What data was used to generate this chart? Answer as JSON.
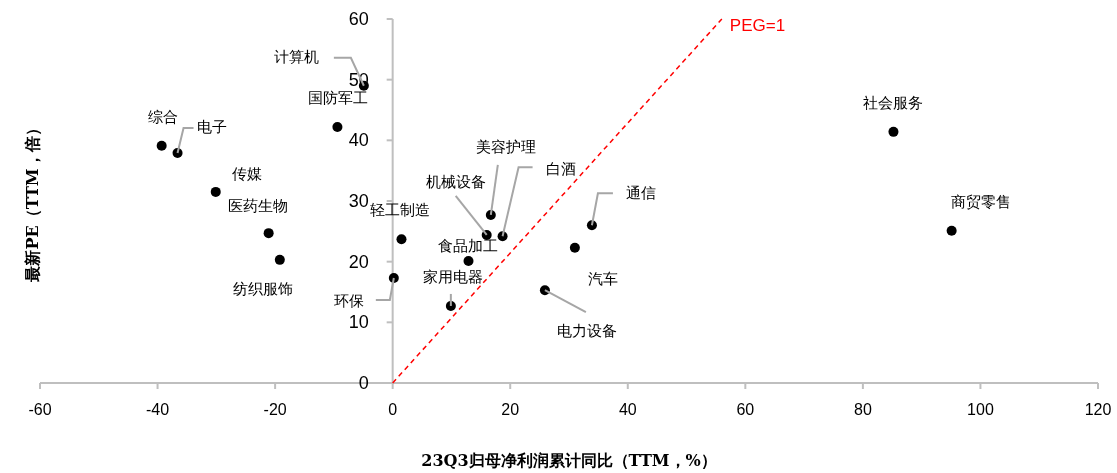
{
  "chart_data": {
    "type": "scatter",
    "xlabel": "23Q3归母净利润累计同比（TTM，%）",
    "ylabel": "最新PE（TTM，倍）",
    "xlim": [
      -60,
      120
    ],
    "xticks": [
      -60,
      -40,
      -20,
      0,
      20,
      40,
      60,
      80,
      100,
      120
    ],
    "ylim": [
      0,
      60
    ],
    "yticks": [
      0,
      10,
      20,
      30,
      40,
      50,
      60
    ],
    "grid": false,
    "series": [
      {
        "color": "#000000",
        "marker": "circle",
        "x": [
          -39.3,
          -36.6,
          -4.9,
          -9.4,
          -30.1,
          -21.1,
          -19.2,
          1.5,
          0.2,
          16.7,
          16.0,
          18.7,
          12.9,
          9.9,
          25.9,
          31.0,
          33.9,
          85.2,
          95.1
        ],
        "values": [
          39.1,
          37.9,
          49.0,
          42.2,
          31.5,
          24.7,
          20.3,
          23.7,
          17.3,
          27.7,
          24.4,
          24.2,
          20.1,
          12.7,
          15.3,
          22.3,
          26.0,
          41.4,
          25.1
        ]
      },
      {
        "type": "line",
        "name": "PEG=1",
        "color": "#ff0000",
        "line_style": "dashed",
        "marker": "none",
        "x": [
          0,
          56
        ],
        "values": [
          0,
          60
        ]
      }
    ],
    "annotations": [
      {
        "text": "综合",
        "x": -39.3,
        "y": 39.1
      },
      {
        "text": "电子",
        "x": -36.6,
        "y": 37.9
      },
      {
        "text": "计算机",
        "x": -4.9,
        "y": 49.0
      },
      {
        "text": "国防军工",
        "x": -9.4,
        "y": 42.2
      },
      {
        "text": "传媒",
        "x": -30.1,
        "y": 31.5
      },
      {
        "text": "医药生物",
        "x": -21.1,
        "y": 24.7
      },
      {
        "text": "纺织服饰",
        "x": -19.2,
        "y": 20.3
      },
      {
        "text": "轻工制造",
        "x": 1.5,
        "y": 23.7
      },
      {
        "text": "环保",
        "x": 0.2,
        "y": 17.3
      },
      {
        "text": "美容护理",
        "x": 16.7,
        "y": 27.7
      },
      {
        "text": "机械设备",
        "x": 16.0,
        "y": 24.4
      },
      {
        "text": "白酒",
        "x": 18.7,
        "y": 24.2
      },
      {
        "text": "食品加工",
        "x": 12.9,
        "y": 20.1
      },
      {
        "text": "家用电器",
        "x": 9.9,
        "y": 12.7
      },
      {
        "text": "电力设备",
        "x": 25.9,
        "y": 15.3
      },
      {
        "text": "汽车",
        "x": 31.0,
        "y": 22.3
      },
      {
        "text": "通信",
        "x": 33.9,
        "y": 26.0
      },
      {
        "text": "社会服务",
        "x": 85.2,
        "y": 41.4
      },
      {
        "text": "商贸零售",
        "x": 95.1,
        "y": 25.1
      }
    ]
  }
}
